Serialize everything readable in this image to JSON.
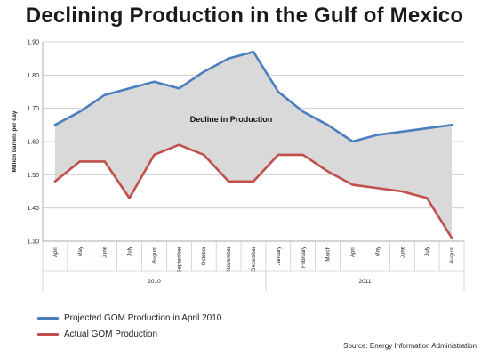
{
  "chart_data": {
    "type": "line",
    "title": "Declining Production in the Gulf of Mexico",
    "ylabel": "Million barrels per day",
    "ylim": [
      1.3,
      1.9
    ],
    "yticks": [
      "1.90",
      "1.80",
      "1.70",
      "1.60",
      "1.50",
      "1.40",
      "1.30"
    ],
    "categories": [
      "April",
      "May",
      "June",
      "July",
      "August",
      "September",
      "October",
      "November",
      "December",
      "January",
      "February",
      "March",
      "April",
      "May",
      "June",
      "July",
      "August"
    ],
    "year_groups": [
      {
        "label": "2010",
        "count": 9
      },
      {
        "label": "2011",
        "count": 8
      }
    ],
    "series": [
      {
        "name": "Projected GOM Production  in April 2010",
        "color": "#4a7ebf",
        "values": [
          1.65,
          1.69,
          1.74,
          1.76,
          1.78,
          1.76,
          1.81,
          1.85,
          1.87,
          1.75,
          1.69,
          1.65,
          1.6,
          1.62,
          1.63,
          1.64,
          1.65
        ]
      },
      {
        "name": "Actual GOM Production",
        "color": "#c0504d",
        "values": [
          1.48,
          1.54,
          1.54,
          1.43,
          1.56,
          1.59,
          1.56,
          1.48,
          1.48,
          1.56,
          1.56,
          1.51,
          1.47,
          1.46,
          1.45,
          1.43,
          1.31
        ]
      }
    ],
    "area_between_color": "#d9d9d9",
    "annotation": "Decline in Production",
    "grid": "horizontal",
    "legend": "bottom-left"
  },
  "source": "Source: Energy Information Administration"
}
